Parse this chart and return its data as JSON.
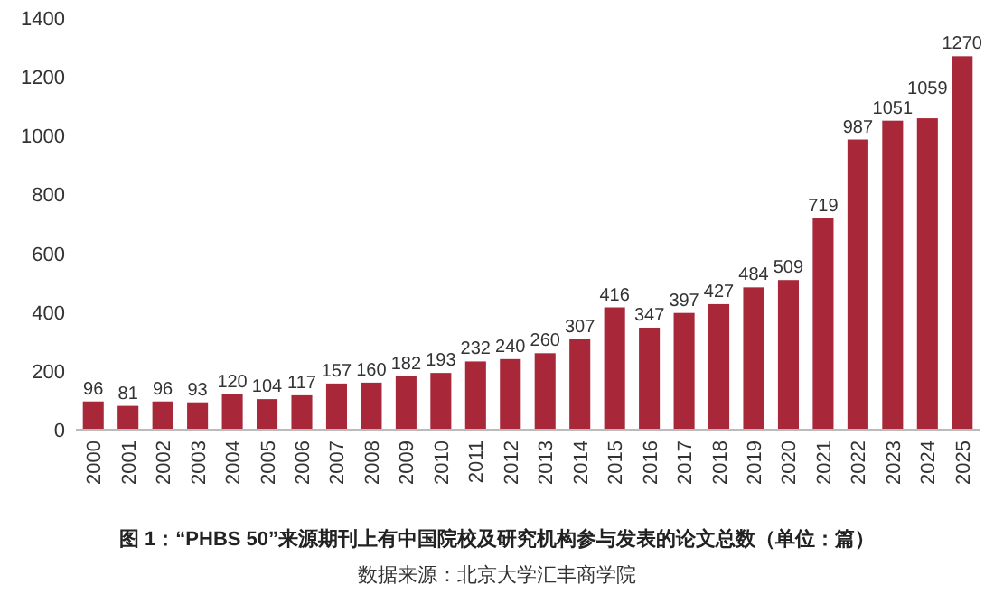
{
  "chart_data": {
    "type": "bar",
    "title": "图 1：“PHBS 50”来源期刊上有中国院校及研究机构参与发表的论文总数（单位：篇）",
    "categories": [
      "2000",
      "2001",
      "2002",
      "2003",
      "2004",
      "2005",
      "2006",
      "2007",
      "2008",
      "2009",
      "2010",
      "2011",
      "2012",
      "2013",
      "2014",
      "2015",
      "2016",
      "2017",
      "2018",
      "2019",
      "2020",
      "2021",
      "2022",
      "2023",
      "2024",
      "2025"
    ],
    "values": [
      96,
      81,
      96,
      93,
      120,
      104,
      117,
      157,
      160,
      182,
      193,
      232,
      240,
      260,
      307,
      416,
      347,
      397,
      427,
      484,
      509,
      719,
      987,
      1051,
      1059,
      1270
    ],
    "color": "#a8283a",
    "ylim": [
      0,
      1400
    ],
    "yticks": [
      0,
      200,
      400,
      600,
      800,
      1000,
      1200,
      1400
    ],
    "data_labels": true,
    "grid": false,
    "annotations": [
      "数据来源：北京大学汇丰商学院"
    ]
  }
}
